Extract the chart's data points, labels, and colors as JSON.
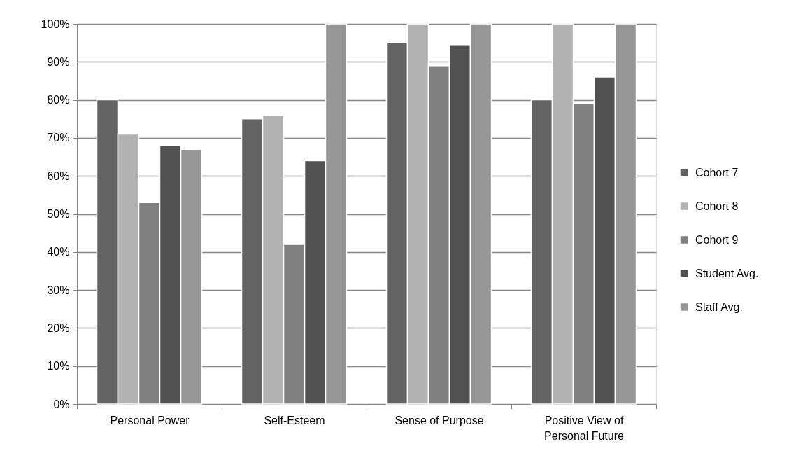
{
  "chart_data": {
    "type": "bar",
    "categories": [
      "Personal Power",
      "Self-Esteem",
      "Sense of Purpose",
      "Positive View of Personal Future"
    ],
    "series": [
      {
        "name": "Cohort 7",
        "color": "#636363",
        "values": [
          80,
          75,
          95,
          80
        ]
      },
      {
        "name": "Cohort 8",
        "color": "#b2b2b2",
        "values": [
          71,
          76,
          100,
          100
        ]
      },
      {
        "name": "Cohort 9",
        "color": "#808080",
        "values": [
          53,
          42,
          89,
          79
        ]
      },
      {
        "name": "Student Avg.",
        "color": "#515151",
        "values": [
          68,
          64,
          94.5,
          86
        ]
      },
      {
        "name": "Staff Avg.",
        "color": "#969696",
        "values": [
          67,
          100,
          100,
          100
        ]
      }
    ],
    "ylim": [
      0,
      100
    ],
    "yticks": [
      {
        "value": 0,
        "label": "0%"
      },
      {
        "value": 10,
        "label": "10%"
      },
      {
        "value": 20,
        "label": "20%"
      },
      {
        "value": 30,
        "label": "30%"
      },
      {
        "value": 40,
        "label": "40%"
      },
      {
        "value": 50,
        "label": "50%"
      },
      {
        "value": 60,
        "label": "60%"
      },
      {
        "value": 70,
        "label": "70%"
      },
      {
        "value": 80,
        "label": "80%"
      },
      {
        "value": 90,
        "label": "90%"
      },
      {
        "value": 100,
        "label": "100%"
      }
    ],
    "grid": "y",
    "legend": "right"
  }
}
